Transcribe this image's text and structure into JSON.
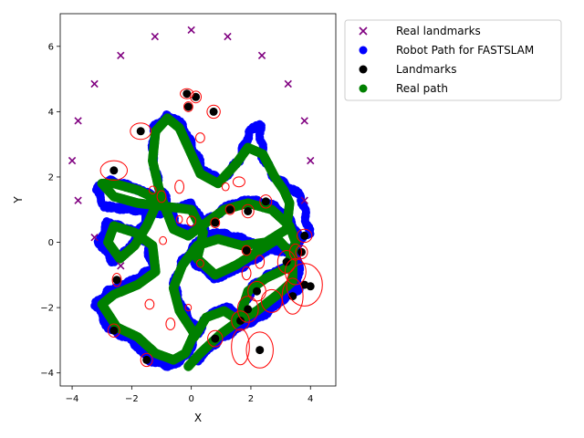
{
  "chart_data": {
    "type": "scatter",
    "title": "",
    "xlabel": "X",
    "ylabel": "Y",
    "xlim": [
      -4.4,
      4.85
    ],
    "ylim": [
      -4.4,
      7.0
    ],
    "xticks": [
      -4,
      -2,
      0,
      2,
      4
    ],
    "yticks": [
      -4,
      -2,
      0,
      2,
      4,
      6
    ],
    "xtick_labels": [
      "−4",
      "−2",
      "0",
      "2",
      "4"
    ],
    "ytick_labels": [
      "−4",
      "−2",
      "0",
      "2",
      "4",
      "6"
    ],
    "grid": false,
    "legend_position": "outside-top-right",
    "series": [
      {
        "name": "Real landmarks",
        "marker": "x",
        "color": "#800080",
        "points": [
          [
            -4.0,
            2.5
          ],
          [
            -3.8,
            3.72
          ],
          [
            -3.8,
            1.28
          ],
          [
            -3.25,
            4.85
          ],
          [
            -3.25,
            0.15
          ],
          [
            -2.37,
            5.72
          ],
          [
            -2.37,
            -0.72
          ],
          [
            -1.22,
            6.3
          ],
          [
            0.0,
            6.5
          ],
          [
            1.22,
            6.3
          ],
          [
            2.37,
            5.72
          ],
          [
            3.25,
            4.85
          ],
          [
            3.8,
            3.72
          ],
          [
            4.0,
            2.5
          ],
          [
            3.8,
            1.28
          ]
        ]
      },
      {
        "name": "Robot Path for FASTSLAM",
        "marker": "o",
        "color": "#0000ff",
        "points": []
      },
      {
        "name": "Landmarks",
        "marker": "o",
        "color": "#000000",
        "points": [
          [
            -0.15,
            4.55
          ],
          [
            0.15,
            4.45
          ],
          [
            -0.1,
            4.15
          ],
          [
            0.75,
            4.0
          ],
          [
            -1.7,
            3.4
          ],
          [
            -2.6,
            2.2
          ],
          [
            -2.5,
            -1.15
          ],
          [
            0.8,
            0.6
          ],
          [
            1.3,
            1.0
          ],
          [
            1.9,
            0.95
          ],
          [
            2.5,
            1.25
          ],
          [
            3.8,
            0.2
          ],
          [
            3.7,
            -0.3
          ],
          [
            3.2,
            -0.6
          ],
          [
            3.4,
            -1.65
          ],
          [
            3.8,
            -1.3
          ],
          [
            4.0,
            -1.35
          ],
          [
            2.2,
            -1.5
          ],
          [
            1.9,
            -2.05
          ],
          [
            1.65,
            -2.4
          ],
          [
            0.8,
            -2.95
          ],
          [
            2.3,
            -3.3
          ],
          [
            -1.5,
            -3.6
          ],
          [
            -2.6,
            -2.7
          ],
          [
            1.85,
            -0.25
          ]
        ]
      },
      {
        "name": "Real path",
        "marker": "o",
        "color": "#008000",
        "points": []
      }
    ],
    "robot_path": [
      [
        0.2,
        -2.8
      ],
      [
        0.6,
        -2.2
      ],
      [
        1.2,
        -2.0
      ],
      [
        1.7,
        -2.3
      ],
      [
        2.0,
        -1.4
      ],
      [
        2.6,
        -1.0
      ],
      [
        3.3,
        -0.7
      ],
      [
        3.6,
        0.1
      ],
      [
        3.4,
        0.6
      ],
      [
        2.8,
        1.1
      ],
      [
        2.0,
        1.3
      ],
      [
        1.2,
        1.1
      ],
      [
        0.6,
        0.7
      ],
      [
        0.0,
        0.3
      ],
      [
        -0.5,
        0.5
      ],
      [
        -0.8,
        1.2
      ],
      [
        -1.1,
        1.8
      ],
      [
        -1.3,
        2.6
      ],
      [
        -1.25,
        3.5
      ],
      [
        -0.8,
        3.9
      ],
      [
        -0.3,
        3.6
      ],
      [
        0.0,
        3.0
      ],
      [
        0.4,
        2.2
      ],
      [
        1.0,
        1.9
      ],
      [
        1.6,
        2.5
      ],
      [
        1.95,
        3.4
      ],
      [
        2.3,
        3.6
      ],
      [
        2.4,
        2.6
      ],
      [
        2.8,
        2.0
      ],
      [
        3.7,
        1.4
      ],
      [
        3.95,
        0.3
      ],
      [
        3.3,
        -0.3
      ],
      [
        2.5,
        -0.2
      ],
      [
        1.7,
        0.1
      ],
      [
        0.9,
        0.3
      ],
      [
        0.2,
        0.0
      ],
      [
        -0.3,
        -0.6
      ],
      [
        -0.6,
        -1.3
      ],
      [
        -0.3,
        -2.0
      ],
      [
        0.2,
        -2.7
      ],
      [
        -0.1,
        -3.4
      ],
      [
        -0.7,
        -3.8
      ],
      [
        -1.4,
        -3.6
      ],
      [
        -2.0,
        -3.0
      ],
      [
        -2.8,
        -2.6
      ],
      [
        -3.2,
        -1.9
      ],
      [
        -2.8,
        -1.5
      ],
      [
        -2.0,
        -1.2
      ],
      [
        -1.3,
        -0.8
      ],
      [
        -1.5,
        0.0
      ],
      [
        -2.1,
        0.4
      ],
      [
        -2.8,
        0.6
      ],
      [
        -3.1,
        0.0
      ],
      [
        -2.6,
        -0.6
      ],
      [
        -2.1,
        -0.2
      ],
      [
        -1.6,
        0.6
      ],
      [
        -1.2,
        1.4
      ],
      [
        -2.0,
        1.7
      ],
      [
        -2.8,
        1.9
      ],
      [
        -3.2,
        1.6
      ],
      [
        -2.9,
        1.1
      ],
      [
        -2.0,
        1.0
      ],
      [
        -1.0,
        0.9
      ],
      [
        0.0,
        1.2
      ],
      [
        0.5,
        0.4
      ],
      [
        0.1,
        -0.6
      ],
      [
        0.8,
        -1.1
      ],
      [
        1.6,
        -0.8
      ],
      [
        2.3,
        -0.4
      ],
      [
        3.0,
        0.0
      ],
      [
        3.6,
        -0.5
      ],
      [
        3.6,
        -1.4
      ],
      [
        3.0,
        -1.8
      ],
      [
        2.3,
        -2.3
      ],
      [
        1.6,
        -2.6
      ],
      [
        0.9,
        -3.0
      ],
      [
        0.2,
        -3.6
      ]
    ],
    "real_path": [
      [
        0.1,
        -2.9
      ],
      [
        0.5,
        -2.3
      ],
      [
        1.1,
        -2.1
      ],
      [
        1.6,
        -2.4
      ],
      [
        1.9,
        -1.5
      ],
      [
        2.5,
        -1.1
      ],
      [
        3.2,
        -0.8
      ],
      [
        3.5,
        0.0
      ],
      [
        3.3,
        0.5
      ],
      [
        2.7,
        1.0
      ],
      [
        1.9,
        1.2
      ],
      [
        1.1,
        1.0
      ],
      [
        0.5,
        0.6
      ],
      [
        -0.1,
        0.2
      ],
      [
        -0.6,
        0.4
      ],
      [
        -0.9,
        1.1
      ],
      [
        -1.1,
        1.7
      ],
      [
        -1.3,
        2.5
      ],
      [
        -1.2,
        3.4
      ],
      [
        -0.8,
        3.8
      ],
      [
        -0.4,
        3.5
      ],
      [
        -0.1,
        2.9
      ],
      [
        0.3,
        2.1
      ],
      [
        0.9,
        1.8
      ],
      [
        1.5,
        2.4
      ],
      [
        1.9,
        2.9
      ],
      [
        2.4,
        2.7
      ],
      [
        2.8,
        2.0
      ],
      [
        3.1,
        1.6
      ],
      [
        3.3,
        1.2
      ],
      [
        3.2,
        0.4
      ],
      [
        2.5,
        0.0
      ],
      [
        1.7,
        -0.1
      ],
      [
        0.9,
        0.1
      ],
      [
        0.2,
        -0.1
      ],
      [
        -0.3,
        -0.7
      ],
      [
        -0.6,
        -1.4
      ],
      [
        -0.4,
        -2.1
      ],
      [
        0.1,
        -2.8
      ],
      [
        -0.2,
        -3.4
      ],
      [
        -0.6,
        -3.6
      ],
      [
        -1.2,
        -3.4
      ],
      [
        -1.8,
        -2.9
      ],
      [
        -2.5,
        -2.6
      ],
      [
        -3.0,
        -1.9
      ],
      [
        -2.6,
        -1.6
      ],
      [
        -1.8,
        -1.3
      ],
      [
        -1.2,
        -0.9
      ],
      [
        -1.3,
        -0.1
      ],
      [
        -1.9,
        0.3
      ],
      [
        -2.6,
        0.5
      ],
      [
        -2.8,
        0.0
      ],
      [
        -2.4,
        -0.5
      ],
      [
        -1.9,
        -0.1
      ],
      [
        -1.5,
        0.5
      ],
      [
        -1.1,
        1.3
      ],
      [
        -1.8,
        1.6
      ],
      [
        -2.6,
        1.8
      ],
      [
        -3.0,
        1.8
      ],
      [
        -2.6,
        1.4
      ],
      [
        -1.8,
        1.2
      ],
      [
        -0.9,
        1.1
      ],
      [
        0.0,
        1.0
      ],
      [
        0.4,
        0.3
      ],
      [
        0.2,
        -0.5
      ],
      [
        0.8,
        -1.0
      ],
      [
        1.5,
        -0.7
      ],
      [
        2.2,
        -0.3
      ],
      [
        2.9,
        0.1
      ],
      [
        3.4,
        -0.4
      ],
      [
        3.4,
        -1.2
      ],
      [
        2.9,
        -1.6
      ],
      [
        2.2,
        -2.1
      ],
      [
        1.6,
        -2.4
      ],
      [
        1.0,
        -2.8
      ],
      [
        0.3,
        -3.4
      ],
      [
        -0.1,
        -3.8
      ]
    ],
    "ellipses": [
      [
        -0.15,
        4.55,
        0.22,
        0.15
      ],
      [
        0.15,
        4.45,
        0.18,
        0.18
      ],
      [
        -0.1,
        4.15,
        0.15,
        0.15
      ],
      [
        0.75,
        4.0,
        0.22,
        0.2
      ],
      [
        -1.7,
        3.4,
        0.35,
        0.25
      ],
      [
        -2.6,
        2.2,
        0.45,
        0.3
      ],
      [
        -2.5,
        -1.15,
        0.15,
        0.2
      ],
      [
        0.8,
        0.6,
        0.15,
        0.15
      ],
      [
        1.3,
        1.0,
        0.15,
        0.15
      ],
      [
        1.9,
        0.95,
        0.2,
        0.2
      ],
      [
        2.5,
        1.25,
        0.2,
        0.2
      ],
      [
        3.8,
        0.2,
        0.25,
        0.2
      ],
      [
        3.7,
        -0.3,
        0.2,
        0.2
      ],
      [
        3.2,
        -0.6,
        0.3,
        0.35
      ],
      [
        3.4,
        -1.65,
        0.35,
        0.55
      ],
      [
        3.8,
        -1.3,
        0.6,
        0.65
      ],
      [
        2.2,
        -1.5,
        0.3,
        0.3
      ],
      [
        1.9,
        -2.05,
        0.35,
        0.4
      ],
      [
        1.65,
        -2.4,
        0.3,
        0.3
      ],
      [
        0.8,
        -2.95,
        0.25,
        0.25
      ],
      [
        2.3,
        -3.3,
        0.45,
        0.55
      ],
      [
        1.65,
        -3.2,
        0.3,
        0.55
      ],
      [
        -1.5,
        -3.6,
        0.2,
        0.2
      ],
      [
        -2.6,
        -2.7,
        0.2,
        0.2
      ],
      [
        1.85,
        -0.25,
        0.15,
        0.15
      ],
      [
        1.6,
        1.85,
        0.2,
        0.15
      ],
      [
        0.3,
        3.2,
        0.15,
        0.15
      ],
      [
        -0.4,
        1.7,
        0.15,
        0.2
      ],
      [
        0.0,
        0.65,
        0.15,
        0.15
      ],
      [
        -0.4,
        0.7,
        0.1,
        0.12
      ],
      [
        -1.0,
        1.4,
        0.15,
        0.18
      ],
      [
        3.5,
        -0.9,
        0.35,
        0.4
      ],
      [
        2.3,
        -0.6,
        0.15,
        0.2
      ],
      [
        1.85,
        -0.95,
        0.15,
        0.2
      ],
      [
        2.7,
        -1.8,
        0.35,
        0.35
      ],
      [
        -0.7,
        -2.5,
        0.15,
        0.18
      ],
      [
        -1.4,
        -1.9,
        0.15,
        0.15
      ],
      [
        -0.95,
        0.05,
        0.12,
        0.12
      ],
      [
        0.3,
        -0.65,
        0.12,
        0.12
      ],
      [
        -0.1,
        -2.0,
        0.1,
        0.1
      ],
      [
        1.15,
        1.7,
        0.12,
        0.12
      ],
      [
        3.5,
        -0.3,
        0.2,
        0.25
      ],
      [
        -1.3,
        1.6,
        0.12,
        0.12
      ]
    ]
  }
}
